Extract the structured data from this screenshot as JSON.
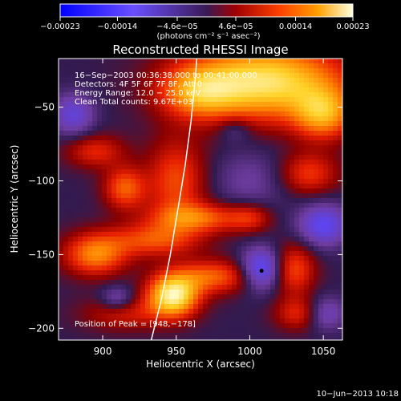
{
  "chart_data": {
    "type": "heatmap",
    "title": "Reconstructed RHESSI Image",
    "xlabel": "Heliocentric X (arcsec)",
    "ylabel": "Heliocentric Y (arcsec)",
    "xlim": [
      870,
      1063
    ],
    "ylim": [
      -208,
      -17
    ],
    "x_ticks": [
      900,
      950,
      1000,
      1050
    ],
    "x_tick_labels": [
      "900",
      "950",
      "1000",
      "1050"
    ],
    "y_ticks": [
      -50,
      -100,
      -150,
      -200
    ],
    "y_tick_labels": [
      "−50",
      "−100",
      "−150",
      "−200"
    ],
    "colorbar": {
      "min": -0.00023,
      "max": 0.00023,
      "ticks": [
        -0.00023,
        -0.00014,
        -4.6e-05,
        4.6e-05,
        0.00014,
        0.00023
      ],
      "tick_labels": [
        "−0.00023",
        "−0.00014",
        "−4.6e−05",
        "4.6e−05",
        "0.00014",
        "0.00023"
      ],
      "units": "(photons cm⁻² s⁻¹ asec⁻²)"
    },
    "info_lines": [
      "16−Sep−2003 00:36:38.000 to 00:41:00.000",
      "Detectors: 4F 5F 6F 7F 8F, Att 0",
      "Energy Range: 12.0 − 25.0 keV",
      "Clean    Total counts: 9.67E+03"
    ],
    "peak_label": "Position of Peak = [948,−178]",
    "peak_position": [
      948,
      -178
    ],
    "marker_position": [
      1008,
      -161
    ],
    "limb_points": [
      [
        933,
        -208
      ],
      [
        940,
        -180
      ],
      [
        946,
        -150
      ],
      [
        951,
        -120
      ],
      [
        956,
        -90
      ],
      [
        960,
        -60
      ],
      [
        963,
        -30
      ],
      [
        964,
        -17
      ]
    ],
    "grid": false,
    "source_blobs": [
      {
        "x": 1010,
        "y": -33,
        "sx": 38,
        "sy": 18,
        "a": 0.95
      },
      {
        "x": 1050,
        "y": -55,
        "sx": 14,
        "sy": 12,
        "a": 0.6
      },
      {
        "x": 965,
        "y": -40,
        "sx": 18,
        "sy": 12,
        "a": 0.5
      },
      {
        "x": 1040,
        "y": -95,
        "sx": 14,
        "sy": 10,
        "a": 0.4
      },
      {
        "x": 948,
        "y": -178,
        "sx": 12,
        "sy": 10,
        "a": 1.0
      },
      {
        "x": 950,
        "y": -100,
        "sx": 14,
        "sy": 20,
        "a": 0.45
      },
      {
        "x": 965,
        "y": -125,
        "sx": 22,
        "sy": 7,
        "a": 0.5
      },
      {
        "x": 915,
        "y": -105,
        "sx": 10,
        "sy": 10,
        "a": 0.5
      },
      {
        "x": 935,
        "y": -140,
        "sx": 22,
        "sy": 8,
        "a": 0.45
      },
      {
        "x": 895,
        "y": -150,
        "sx": 15,
        "sy": 10,
        "a": 0.6
      },
      {
        "x": 975,
        "y": -165,
        "sx": 20,
        "sy": 8,
        "a": 0.5
      },
      {
        "x": 1030,
        "y": -160,
        "sx": 10,
        "sy": 12,
        "a": 0.45
      },
      {
        "x": 1035,
        "y": -190,
        "sx": 12,
        "sy": 8,
        "a": 0.4
      },
      {
        "x": 915,
        "y": -190,
        "sx": 20,
        "sy": 8,
        "a": 0.3
      },
      {
        "x": 895,
        "y": -80,
        "sx": 14,
        "sy": 8,
        "a": 0.35
      },
      {
        "x": 1000,
        "y": -125,
        "sx": 10,
        "sy": 7,
        "a": 0.3
      },
      {
        "x": 1050,
        "y": -130,
        "sx": 12,
        "sy": 10,
        "a": -0.5
      },
      {
        "x": 1008,
        "y": -160,
        "sx": 10,
        "sy": 10,
        "a": -0.6
      },
      {
        "x": 1050,
        "y": -190,
        "sx": 10,
        "sy": 8,
        "a": -0.4
      },
      {
        "x": 880,
        "y": -55,
        "sx": 10,
        "sy": 10,
        "a": -0.4
      },
      {
        "x": 910,
        "y": -180,
        "sx": 8,
        "sy": 6,
        "a": -0.3
      },
      {
        "x": 1000,
        "y": -100,
        "sx": 18,
        "sy": 15,
        "a": -0.2
      },
      {
        "x": 990,
        "y": -65,
        "sx": 8,
        "sy": 6,
        "a": -0.2
      }
    ]
  },
  "footer": {
    "date_label": "10−Jun−2013 10:18"
  }
}
